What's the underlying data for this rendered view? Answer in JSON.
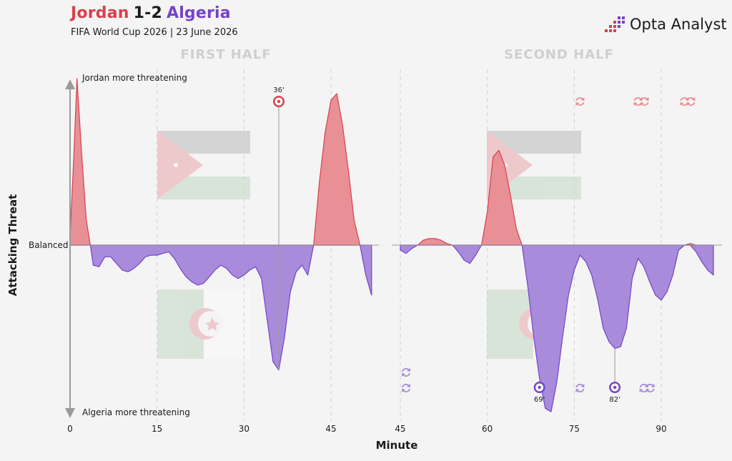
{
  "header": {
    "home_team": "Jordan",
    "score": "1-2",
    "away_team": "Algeria",
    "subtitle": "FIFA World Cup 2026 | 23 June 2026",
    "brand": "Opta Analyst"
  },
  "colors": {
    "home": "#d8404d",
    "home_fill": "#e89095",
    "away": "#7444c8",
    "away_fill": "#a88bdb",
    "grid": "#cfcfcf"
  },
  "chart_data": {
    "type": "area",
    "xlabel": "Minute",
    "ylabel": "Attacking Threat",
    "baseline_label": "Balanced",
    "top_label": "Jordan more threatening",
    "bottom_label": "Algeria more threatening",
    "ylim": [
      -1,
      1
    ],
    "halves": [
      {
        "label": "FIRST HALF",
        "xlim": [
          0,
          57
        ],
        "ticks": [
          0,
          15,
          30,
          45
        ],
        "points": [
          [
            0,
            0.05
          ],
          [
            0.6,
            0.5
          ],
          [
            1.2,
            1.0
          ],
          [
            2.0,
            0.55
          ],
          [
            2.8,
            0.15
          ],
          [
            3.5,
            0.0
          ],
          [
            4,
            -0.12
          ],
          [
            5,
            -0.13
          ],
          [
            6,
            -0.07
          ],
          [
            7,
            -0.07
          ],
          [
            8,
            -0.11
          ],
          [
            9,
            -0.15
          ],
          [
            10,
            -0.16
          ],
          [
            11,
            -0.14
          ],
          [
            12,
            -0.11
          ],
          [
            13,
            -0.07
          ],
          [
            14,
            -0.06
          ],
          [
            15,
            -0.06
          ],
          [
            16,
            -0.05
          ],
          [
            17,
            -0.04
          ],
          [
            18,
            -0.08
          ],
          [
            19,
            -0.14
          ],
          [
            20,
            -0.19
          ],
          [
            21,
            -0.22
          ],
          [
            22,
            -0.24
          ],
          [
            23,
            -0.23
          ],
          [
            24,
            -0.19
          ],
          [
            25,
            -0.15
          ],
          [
            26,
            -0.12
          ],
          [
            27,
            -0.14
          ],
          [
            28,
            -0.18
          ],
          [
            29,
            -0.2
          ],
          [
            30,
            -0.18
          ],
          [
            31,
            -0.15
          ],
          [
            32,
            -0.13
          ],
          [
            33,
            -0.2
          ],
          [
            34,
            -0.45
          ],
          [
            35,
            -0.7
          ],
          [
            36,
            -0.75
          ],
          [
            37,
            -0.55
          ],
          [
            38,
            -0.28
          ],
          [
            39,
            -0.16
          ],
          [
            40,
            -0.12
          ],
          [
            41,
            -0.18
          ],
          [
            42,
            0.0
          ],
          [
            43,
            0.38
          ],
          [
            44,
            0.68
          ],
          [
            45,
            0.87
          ],
          [
            46,
            0.91
          ],
          [
            47,
            0.72
          ],
          [
            48,
            0.45
          ],
          [
            49,
            0.15
          ],
          [
            50,
            0.0
          ],
          [
            51,
            -0.18
          ],
          [
            52,
            -0.3
          ]
        ]
      },
      {
        "label": "SECOND HALF",
        "xlim": [
          45,
          101
        ],
        "ticks": [
          45,
          60,
          75,
          90
        ],
        "points": [
          [
            45,
            -0.03
          ],
          [
            46,
            -0.05
          ],
          [
            47,
            -0.02
          ],
          [
            48,
            0.0
          ],
          [
            49,
            0.03
          ],
          [
            50,
            0.04
          ],
          [
            51,
            0.04
          ],
          [
            52,
            0.03
          ],
          [
            53,
            0.01
          ],
          [
            54,
            0.0
          ],
          [
            55,
            -0.04
          ],
          [
            56,
            -0.09
          ],
          [
            57,
            -0.11
          ],
          [
            58,
            -0.06
          ],
          [
            59,
            0.0
          ],
          [
            60,
            0.2
          ],
          [
            61,
            0.53
          ],
          [
            62,
            0.57
          ],
          [
            63,
            0.48
          ],
          [
            64,
            0.3
          ],
          [
            65,
            0.1
          ],
          [
            66,
            0.0
          ],
          [
            67,
            -0.25
          ],
          [
            68,
            -0.55
          ],
          [
            69,
            -0.8
          ],
          [
            70,
            -0.98
          ],
          [
            71,
            -1.0
          ],
          [
            72,
            -0.82
          ],
          [
            73,
            -0.55
          ],
          [
            74,
            -0.3
          ],
          [
            75,
            -0.15
          ],
          [
            76,
            -0.06
          ],
          [
            77,
            -0.1
          ],
          [
            78,
            -0.18
          ],
          [
            79,
            -0.32
          ],
          [
            80,
            -0.5
          ],
          [
            81,
            -0.58
          ],
          [
            82,
            -0.62
          ],
          [
            83,
            -0.61
          ],
          [
            84,
            -0.5
          ],
          [
            85,
            -0.2
          ],
          [
            86,
            -0.08
          ],
          [
            87,
            -0.13
          ],
          [
            88,
            -0.22
          ],
          [
            89,
            -0.3
          ],
          [
            90,
            -0.33
          ],
          [
            91,
            -0.28
          ],
          [
            92,
            -0.18
          ],
          [
            93,
            -0.03
          ],
          [
            94,
            0.0
          ],
          [
            95,
            0.01
          ],
          [
            96,
            -0.04
          ],
          [
            97,
            -0.1
          ],
          [
            98,
            -0.15
          ],
          [
            99,
            -0.18
          ]
        ]
      }
    ],
    "goals": [
      {
        "minute": 36,
        "label": "36'",
        "team": "home"
      },
      {
        "minute": 69,
        "label": "69'",
        "team": "away"
      },
      {
        "minute": 82,
        "label": "82'",
        "team": "away"
      }
    ],
    "substitutions": {
      "home": [
        {
          "minute": 76,
          "count": 1
        },
        {
          "minute": 86,
          "count": 2
        },
        {
          "minute": 94,
          "count": 2
        }
      ],
      "away": [
        {
          "minute": 46,
          "count": 2
        },
        {
          "minute": 76,
          "count": 1
        },
        {
          "minute": 87,
          "count": 2
        }
      ]
    }
  }
}
